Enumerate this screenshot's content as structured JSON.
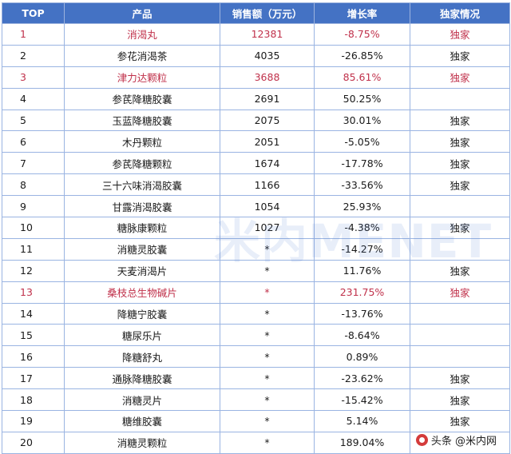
{
  "table": {
    "headers": [
      "TOP",
      "产品",
      "销售额（万元）",
      "增长率",
      "独家情况"
    ],
    "rows": [
      {
        "top": "1",
        "product": "消渴丸",
        "sales": "12381",
        "growth": "-8.75%",
        "exclusive": "独家",
        "highlight": true
      },
      {
        "top": "2",
        "product": "参花消渴茶",
        "sales": "4035",
        "growth": "-26.85%",
        "exclusive": "独家",
        "highlight": false
      },
      {
        "top": "3",
        "product": "津力达颗粒",
        "sales": "3688",
        "growth": "85.61%",
        "exclusive": "独家",
        "highlight": true
      },
      {
        "top": "4",
        "product": "参芪降糖胶囊",
        "sales": "2691",
        "growth": "50.25%",
        "exclusive": "",
        "highlight": false
      },
      {
        "top": "5",
        "product": "玉蓝降糖胶囊",
        "sales": "2075",
        "growth": "30.01%",
        "exclusive": "独家",
        "highlight": false
      },
      {
        "top": "6",
        "product": "木丹颗粒",
        "sales": "2051",
        "growth": "-5.05%",
        "exclusive": "独家",
        "highlight": false
      },
      {
        "top": "7",
        "product": "参芪降糖颗粒",
        "sales": "1674",
        "growth": "-17.78%",
        "exclusive": "独家",
        "highlight": false
      },
      {
        "top": "8",
        "product": "三十六味消渴胶囊",
        "sales": "1166",
        "growth": "-33.56%",
        "exclusive": "独家",
        "highlight": false
      },
      {
        "top": "9",
        "product": "甘露消渴胶囊",
        "sales": "1054",
        "growth": "25.93%",
        "exclusive": "",
        "highlight": false
      },
      {
        "top": "10",
        "product": "糖脉康颗粒",
        "sales": "1027",
        "growth": "-4.38%",
        "exclusive": "独家",
        "highlight": false
      },
      {
        "top": "11",
        "product": "消糖灵胶囊",
        "sales": "*",
        "growth": "-14.27%",
        "exclusive": "",
        "highlight": false
      },
      {
        "top": "12",
        "product": "天麦消渴片",
        "sales": "*",
        "growth": "11.76%",
        "exclusive": "独家",
        "highlight": false
      },
      {
        "top": "13",
        "product": "桑枝总生物碱片",
        "sales": "*",
        "growth": "231.75%",
        "exclusive": "独家",
        "highlight": true
      },
      {
        "top": "14",
        "product": "降糖宁胶囊",
        "sales": "*",
        "growth": "-13.76%",
        "exclusive": "",
        "highlight": false
      },
      {
        "top": "15",
        "product": "糖尿乐片",
        "sales": "*",
        "growth": "-8.64%",
        "exclusive": "",
        "highlight": false
      },
      {
        "top": "16",
        "product": "降糖舒丸",
        "sales": "*",
        "growth": "0.89%",
        "exclusive": "",
        "highlight": false
      },
      {
        "top": "17",
        "product": "通脉降糖胶囊",
        "sales": "*",
        "growth": "-23.62%",
        "exclusive": "独家",
        "highlight": false
      },
      {
        "top": "18",
        "product": "消糖灵片",
        "sales": "*",
        "growth": "-15.42%",
        "exclusive": "独家",
        "highlight": false
      },
      {
        "top": "19",
        "product": "糖维胶囊",
        "sales": "*",
        "growth": "5.14%",
        "exclusive": "独家",
        "highlight": false
      },
      {
        "top": "20",
        "product": "消糖灵颗粒",
        "sales": "*",
        "growth": "189.04%",
        "exclusive": "",
        "highlight": false
      }
    ]
  },
  "watermark": "米内MENET",
  "footer_mark": "头条 @米内网",
  "colors": {
    "header_bg": "#4472c4",
    "header_text": "#ffffff",
    "highlight_text": "#c0314b",
    "grid": "#9ab4e2"
  }
}
